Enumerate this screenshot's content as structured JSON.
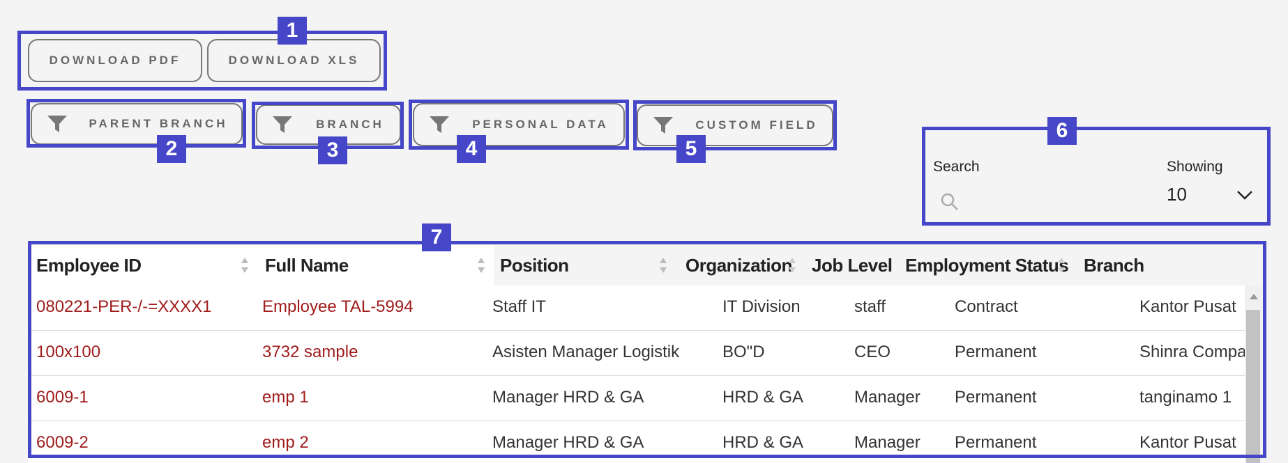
{
  "toolbar": {
    "download_pdf": "DOWNLOAD PDF",
    "download_xls": "DOWNLOAD XLS"
  },
  "filters": {
    "parent_branch": "PARENT BRANCH",
    "branch": "BRANCH",
    "personal_data": "PERSONAL DATA",
    "custom_field": "CUSTOM FIELD"
  },
  "search": {
    "label": "Search",
    "placeholder": ""
  },
  "showing": {
    "label": "Showing",
    "value": "10"
  },
  "table": {
    "headers": [
      "Employee ID",
      "Full Name",
      "Position",
      "Organization",
      "Job Level",
      "Employment Status",
      "Branch"
    ],
    "rows": [
      [
        "080221-PER-/-=XXXX1",
        "Employee TAL-5994",
        "Staff IT",
        "IT Division",
        "staff",
        "Contract",
        "Kantor Pusat"
      ],
      [
        "100x100",
        "3732 sample",
        "Asisten Manager Logistik",
        "BO\"D",
        "CEO",
        "Permanent",
        "Shinra Company"
      ],
      [
        "6009-1",
        "emp 1",
        "Manager HRD & GA",
        "HRD & GA",
        "Manager",
        "Permanent",
        "tanginamo 1"
      ],
      [
        "6009-2",
        "emp 2",
        "Manager HRD & GA",
        "HRD & GA",
        "Manager",
        "Permanent",
        "Kantor Pusat"
      ]
    ]
  },
  "annotations": [
    "1",
    "2",
    "3",
    "4",
    "5",
    "6",
    "7"
  ],
  "colors": {
    "annotation": "#4646c8",
    "link": "#a01c1c",
    "background": "#f4f4f4"
  },
  "icons": {
    "filter": "funnel-icon",
    "search": "search-icon",
    "dropdown": "chevron-down-icon",
    "sort": "sort-icon"
  }
}
